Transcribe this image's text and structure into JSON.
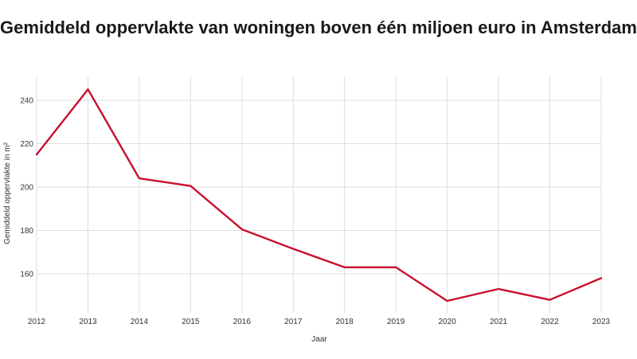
{
  "chart_data": {
    "type": "line",
    "title": "Gemiddeld oppervlakte van woningen boven één miljoen euro in Amsterdam",
    "xlabel": "Jaar",
    "ylabel": "Gemiddeld oppervlakte in m²",
    "x": [
      "2012",
      "2013",
      "2014",
      "2015",
      "2016",
      "2017",
      "2018",
      "2019",
      "2020",
      "2021",
      "2022",
      "2023"
    ],
    "series": [
      {
        "name": "Gemiddeld oppervlakte",
        "values": [
          215,
          245,
          204,
          200.5,
          180.5,
          171.5,
          163,
          163,
          147.5,
          153,
          148,
          158
        ],
        "color": "#c8102e"
      }
    ],
    "yticks": [
      160,
      180,
      200,
      220,
      240
    ],
    "ylim": [
      142,
      251
    ],
    "grid": true
  }
}
